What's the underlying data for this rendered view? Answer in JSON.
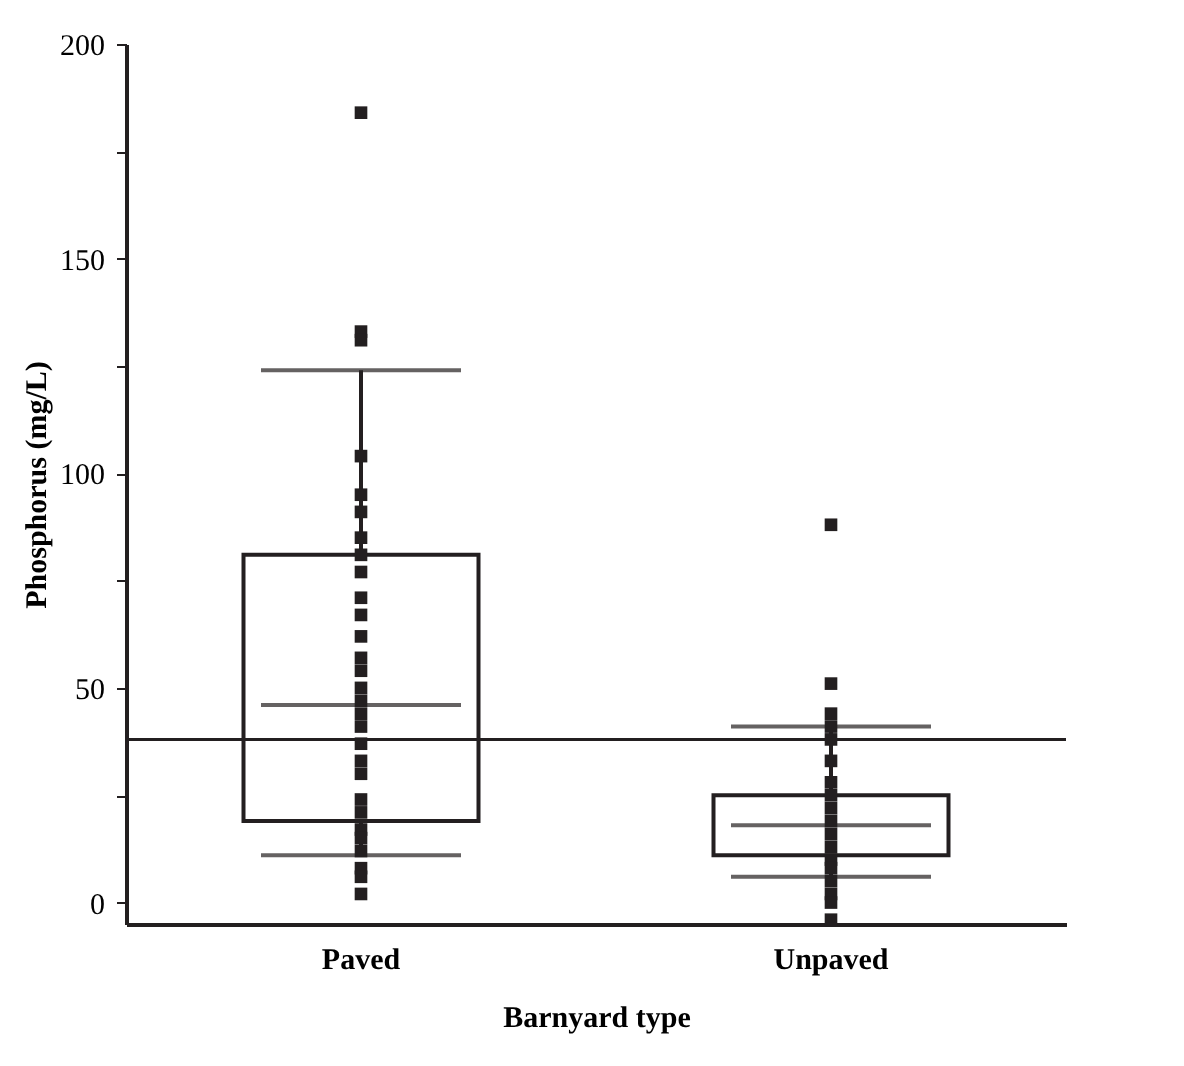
{
  "chart_data": {
    "type": "box",
    "xlabel": "Barnyard type",
    "ylabel": "Phosphorus (mg/L)",
    "categories": [
      "Paved",
      "Unpaved"
    ],
    "boxes": [
      {
        "low": 11,
        "q1": 19,
        "median": 46,
        "q3": 81,
        "high": 124
      },
      {
        "low": 6,
        "q1": 11,
        "median": 18,
        "q3": 25,
        "high": 41
      }
    ],
    "series": [
      {
        "type": "scatter",
        "color": "#231f20",
        "x": [
          "Paved",
          "Paved",
          "Paved",
          "Paved",
          "Paved",
          "Paved",
          "Paved",
          "Paved",
          "Paved",
          "Paved",
          "Paved",
          "Paved",
          "Paved",
          "Paved",
          "Paved",
          "Paved",
          "Paved",
          "Paved",
          "Paved",
          "Paved",
          "Paved",
          "Paved",
          "Paved",
          "Paved",
          "Paved",
          "Paved",
          "Paved",
          "Paved",
          "Paved"
        ],
        "values": [
          184,
          133,
          131,
          104,
          95,
          91,
          85,
          81,
          77,
          71,
          67,
          62,
          57,
          54,
          50,
          47,
          44,
          41,
          37,
          33,
          30,
          24,
          21,
          17,
          15,
          12,
          8,
          6,
          2
        ]
      },
      {
        "type": "scatter",
        "color": "#231f20",
        "x": [
          "Unpaved",
          "Unpaved",
          "Unpaved",
          "Unpaved",
          "Unpaved",
          "Unpaved",
          "Unpaved",
          "Unpaved",
          "Unpaved",
          "Unpaved",
          "Unpaved",
          "Unpaved",
          "Unpaved",
          "Unpaved",
          "Unpaved",
          "Unpaved",
          "Unpaved",
          "Unpaved"
        ],
        "values": [
          88,
          51,
          44,
          41,
          38,
          33,
          28,
          25,
          22,
          19,
          16,
          13,
          10,
          8,
          5,
          2,
          0,
          -4
        ]
      }
    ],
    "ref_lines": [
      {
        "axis": "y",
        "value": 38
      }
    ],
    "ylim": [
      -5,
      200
    ],
    "yticks": [
      0,
      {
        "value": 25,
        "label": null
      },
      50,
      {
        "value": 75,
        "label": null
      },
      100,
      {
        "value": 125,
        "label": null
      },
      150,
      {
        "value": 175,
        "label": null
      },
      200
    ],
    "marker": "square",
    "grid": false
  }
}
